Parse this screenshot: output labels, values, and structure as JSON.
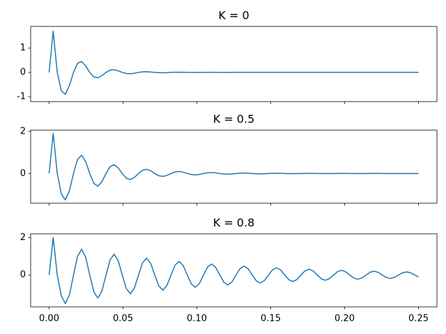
{
  "chart_data": [
    {
      "type": "line",
      "title": "K = 0",
      "color": "#1f77b4",
      "x": [
        0,
        0.00275,
        0.0055,
        0.00825,
        0.011,
        0.01375,
        0.0165,
        0.01925,
        0.022,
        0.02475,
        0.0275,
        0.03025,
        0.033,
        0.03575,
        0.0385,
        0.04125,
        0.044,
        0.04675,
        0.0495,
        0.05225,
        0.055,
        0.05775,
        0.0605,
        0.06325,
        0.066,
        0.06875,
        0.0715,
        0.07425,
        0.077,
        0.07975,
        0.0825,
        0.08525,
        0.088,
        0.09075,
        0.0935,
        0.09625,
        0.099,
        0.10175,
        0.1045,
        0.10725,
        0.11,
        0.11275,
        0.1155,
        0.11825,
        0.121,
        0.12375,
        0.1265,
        0.12925,
        0.132,
        0.13475,
        0.1375,
        0.14025,
        0.143,
        0.14575,
        0.1485,
        0.15125,
        0.154,
        0.15675,
        0.1595,
        0.16225,
        0.165,
        0.16775,
        0.1705,
        0.17325,
        0.176,
        0.17875,
        0.1815,
        0.18425,
        0.187,
        0.18975,
        0.1925,
        0.19525,
        0.198,
        0.20075,
        0.2035,
        0.20625,
        0.209,
        0.21175,
        0.2145,
        0.21725,
        0.22,
        0.22275,
        0.2255,
        0.22825,
        0.231,
        0.23375,
        0.2365,
        0.23925,
        0.242,
        0.24475,
        0.2475,
        0.25
      ],
      "values": [
        0,
        1.7,
        0,
        -0.759,
        -0.9,
        -0.534,
        0,
        0.375,
        0.445,
        0.264,
        0,
        -0.185,
        -0.22,
        -0.131,
        0,
        0.092,
        0.109,
        0.064,
        0,
        -0.045,
        -0.054,
        -0.032,
        0,
        0.023,
        0.027,
        0.016,
        0,
        -0.011,
        -0.013,
        -0.008,
        0,
        0.006,
        0.007,
        0.004,
        0,
        -0.003,
        -0.003,
        -0.002,
        0,
        0.001,
        0.002,
        0.001,
        0,
        -0.001,
        -0.001,
        0,
        0,
        0,
        0,
        0,
        0,
        0,
        0,
        0,
        0,
        0,
        0,
        0,
        0,
        0,
        0,
        0,
        0,
        0,
        0,
        0,
        0,
        0,
        0,
        0,
        0,
        0,
        0,
        0,
        0,
        0,
        0,
        0,
        0,
        0,
        0,
        0,
        0,
        0,
        0,
        0,
        0,
        0,
        0,
        0,
        0,
        0
      ],
      "xlim": [
        -0.0125,
        0.2625
      ],
      "ylim": [
        -1.2,
        1.89
      ],
      "xticks": [
        0,
        0.05,
        0.1,
        0.15,
        0.2,
        0.25
      ],
      "yticks": [
        -1,
        0,
        1
      ]
    },
    {
      "type": "line",
      "title": "K = 0.5",
      "color": "#1f77b4",
      "x": [
        0,
        0.00275,
        0.0055,
        0.00825,
        0.011,
        0.01375,
        0.0165,
        0.01925,
        0.022,
        0.02475,
        0.0275,
        0.03025,
        0.033,
        0.03575,
        0.0385,
        0.04125,
        0.044,
        0.04675,
        0.0495,
        0.05225,
        0.055,
        0.05775,
        0.0605,
        0.06325,
        0.066,
        0.06875,
        0.0715,
        0.07425,
        0.077,
        0.07975,
        0.0825,
        0.08525,
        0.088,
        0.09075,
        0.0935,
        0.09625,
        0.099,
        0.10175,
        0.1045,
        0.10725,
        0.11,
        0.11275,
        0.1155,
        0.11825,
        0.121,
        0.12375,
        0.1265,
        0.12925,
        0.132,
        0.13475,
        0.1375,
        0.14025,
        0.143,
        0.14575,
        0.1485,
        0.15125,
        0.154,
        0.15675,
        0.1595,
        0.16225,
        0.165,
        0.16775,
        0.1705,
        0.17325,
        0.176,
        0.17875,
        0.1815,
        0.18425,
        0.187,
        0.18975,
        0.1925,
        0.19525,
        0.198,
        0.20075,
        0.2035,
        0.20625,
        0.209,
        0.21175,
        0.2145,
        0.21725,
        0.22,
        0.22275,
        0.2255,
        0.22825,
        0.231,
        0.23375,
        0.2365,
        0.23925,
        0.242,
        0.24475,
        0.2475,
        0.25
      ],
      "values": [
        0,
        1.9,
        0,
        -0.971,
        -1.254,
        -0.809,
        0,
        0.673,
        0.869,
        0.56,
        0,
        -0.467,
        -0.602,
        -0.388,
        0,
        0.323,
        0.417,
        0.269,
        0,
        -0.224,
        -0.289,
        -0.187,
        0,
        0.155,
        0.2,
        0.129,
        0,
        -0.107,
        -0.139,
        -0.09,
        0,
        0.074,
        0.096,
        0.062,
        0,
        -0.052,
        -0.067,
        -0.043,
        0,
        0.035,
        0.046,
        0.03,
        0,
        -0.025,
        -0.032,
        -0.021,
        0,
        0.017,
        0.022,
        0.014,
        0,
        -0.012,
        -0.015,
        -0.01,
        0,
        0.008,
        0.011,
        0.007,
        0,
        -0.006,
        -0.007,
        -0.005,
        0,
        0.004,
        0.005,
        0.003,
        0,
        -0.003,
        -0.003,
        -0.002,
        0,
        0.002,
        0.002,
        0.002,
        0,
        -0.001,
        -0.002,
        -0.001,
        0,
        0.001,
        0.001,
        0.001,
        0,
        0,
        -0.001,
        0,
        0,
        0,
        0,
        0,
        0,
        0
      ],
      "xlim": [
        -0.0125,
        0.2625
      ],
      "ylim": [
        -1.41,
        2.06
      ],
      "xticks": [
        0,
        0.05,
        0.1,
        0.15,
        0.2,
        0.25
      ],
      "yticks": [
        0,
        2
      ]
    },
    {
      "type": "line",
      "title": "K = 0.8",
      "color": "#1f77b4",
      "x": [
        0,
        0.00275,
        0.0055,
        0.00825,
        0.011,
        0.01375,
        0.0165,
        0.01925,
        0.022,
        0.02475,
        0.0275,
        0.03025,
        0.033,
        0.03575,
        0.0385,
        0.04125,
        0.044,
        0.04675,
        0.0495,
        0.05225,
        0.055,
        0.05775,
        0.0605,
        0.06325,
        0.066,
        0.06875,
        0.0715,
        0.07425,
        0.077,
        0.07975,
        0.0825,
        0.08525,
        0.088,
        0.09075,
        0.0935,
        0.09625,
        0.099,
        0.10175,
        0.1045,
        0.10725,
        0.11,
        0.11275,
        0.1155,
        0.11825,
        0.121,
        0.12375,
        0.1265,
        0.12925,
        0.132,
        0.13475,
        0.1375,
        0.14025,
        0.143,
        0.14575,
        0.1485,
        0.15125,
        0.154,
        0.15675,
        0.1595,
        0.16225,
        0.165,
        0.16775,
        0.1705,
        0.17325,
        0.176,
        0.17875,
        0.1815,
        0.18425,
        0.187,
        0.18975,
        0.1925,
        0.19525,
        0.198,
        0.20075,
        0.2035,
        0.20625,
        0.209,
        0.21175,
        0.2145,
        0.21725,
        0.22,
        0.22275,
        0.2255,
        0.22825,
        0.231,
        0.23375,
        0.2365,
        0.23925,
        0.242,
        0.24475,
        0.2475,
        0.25
      ],
      "values": [
        0,
        2.0,
        0,
        -1.11,
        -1.529,
        -1.053,
        0,
        0.998,
        1.375,
        0.947,
        0,
        -0.898,
        -1.237,
        -0.852,
        0,
        0.807,
        1.112,
        0.766,
        0,
        -0.726,
        -1.001,
        -0.689,
        0,
        0.653,
        0.9,
        0.62,
        0,
        -0.588,
        -0.81,
        -0.558,
        0,
        0.529,
        0.728,
        0.501,
        0,
        -0.475,
        -0.655,
        -0.451,
        0,
        0.428,
        0.589,
        0.406,
        0,
        -0.385,
        -0.53,
        -0.365,
        0,
        0.346,
        0.476,
        0.328,
        0,
        -0.311,
        -0.429,
        -0.295,
        0,
        0.28,
        0.385,
        0.265,
        0,
        -0.252,
        -0.347,
        -0.239,
        0,
        0.226,
        0.312,
        0.215,
        0,
        -0.204,
        -0.281,
        -0.193,
        0,
        0.183,
        0.252,
        0.174,
        0,
        -0.165,
        -0.227,
        -0.156,
        0,
        0.148,
        0.204,
        0.141,
        0,
        -0.133,
        -0.184,
        -0.127,
        0,
        0.12,
        0.165,
        0.114,
        0,
        -0.1
      ],
      "xlim": [
        -0.0125,
        0.2625
      ],
      "ylim": [
        -1.7,
        2.2
      ],
      "xticks": [
        {
          "value": 0,
          "label": "0.00"
        },
        {
          "value": 0.05,
          "label": "0.05"
        },
        {
          "value": 0.1,
          "label": "0.10"
        },
        {
          "value": 0.15,
          "label": "0.15"
        },
        {
          "value": 0.2,
          "label": "0.20"
        },
        {
          "value": 0.25,
          "label": "0.25"
        }
      ],
      "yticks": [
        0,
        2
      ]
    }
  ]
}
